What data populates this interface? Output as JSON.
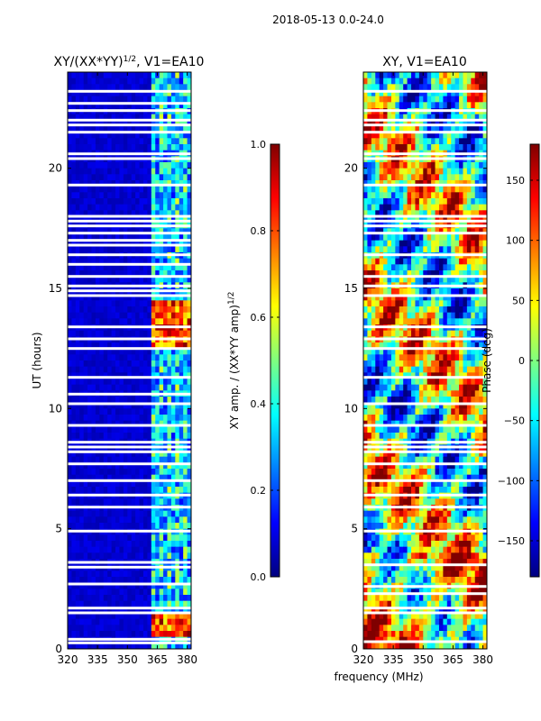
{
  "figure": {
    "suptitle": "2018-05-13 0.0-24.0",
    "xlabel": "frequency (MHz)"
  },
  "colors": {
    "jet": [
      "#00007f",
      "#0000ff",
      "#007fff",
      "#00ffff",
      "#7fff7f",
      "#ffff00",
      "#ff7f00",
      "#ff0000",
      "#7f0000"
    ],
    "gap": "#ffffff",
    "frame": "#000000"
  },
  "chart_data": [
    {
      "type": "heatmap",
      "name": "amplitude-ratio",
      "title_main": "XY/(XX*YY)",
      "title_sup": "1/2",
      "title_tail": ", V1=EA10",
      "xlabel": "",
      "ylabel": "UT (hours)",
      "xlim": [
        320,
        382
      ],
      "ylim": [
        0,
        24
      ],
      "xticks": [
        320,
        335,
        350,
        365,
        380
      ],
      "yticks": [
        0,
        5,
        10,
        15,
        20
      ],
      "colorbar": {
        "label_main": "XY amp. / (XX*YY amp)",
        "label_sup": "1/2",
        "range": [
          0.0,
          1.0
        ],
        "ticks": [
          "0.0",
          "0.2",
          "0.4",
          "0.6",
          "0.8",
          "1.0"
        ]
      },
      "gaps_hours": [
        0.25,
        0.4,
        1.5,
        1.7,
        2.7,
        3.4,
        3.6,
        4.9,
        5.9,
        6.4,
        7.0,
        7.7,
        8.2,
        8.4,
        8.6,
        9.3,
        10.2,
        10.6,
        11.3,
        12.5,
        12.9,
        13.4,
        14.7,
        14.9,
        15.1,
        15.5,
        16.0,
        16.4,
        16.8,
        17.0,
        17.3,
        17.6,
        17.8,
        18.0,
        19.3,
        20.4,
        20.6,
        21.5,
        21.8,
        22.0,
        22.4,
        22.7,
        23.2
      ],
      "levels": [
        {
          "band": "320-362 MHz (background)",
          "value": 0.06
        },
        {
          "band": "362-382 MHz (RFI channels)",
          "value": 0.45
        },
        {
          "band": "362-382 MHz, 12.5-14.5 h",
          "value": 0.85
        },
        {
          "band": "362-382 MHz, 0.5-1.5 h",
          "value": 0.85
        }
      ]
    },
    {
      "type": "heatmap",
      "name": "phase",
      "title_main": "XY, V1=EA10",
      "xlabel": "",
      "ylabel": "",
      "xlim": [
        320,
        382
      ],
      "ylim": [
        0,
        24
      ],
      "xticks": [
        320,
        335,
        350,
        365,
        380
      ],
      "yticks": [
        0,
        5,
        10,
        15,
        20
      ],
      "colorbar": {
        "label_main": "Phase (deg)",
        "range": [
          -180,
          180
        ],
        "ticks": [
          "−150",
          "−100",
          "−50",
          "0",
          "50",
          "100",
          "150"
        ]
      },
      "gaps_hours": [
        0.3,
        1.5,
        1.7,
        2.3,
        2.6,
        3.5,
        4.9,
        5.9,
        6.4,
        7.0,
        7.7,
        8.2,
        8.4,
        8.6,
        9.3,
        10.2,
        11.3,
        12.5,
        12.9,
        13.4,
        14.7,
        15.1,
        15.5,
        16.4,
        17.3,
        17.6,
        17.8,
        18.0,
        19.3,
        20.4,
        20.6,
        21.5,
        21.8,
        22.0,
        22.4,
        23.2
      ],
      "levels": [
        {
          "band": "0-4 h",
          "value": 60
        },
        {
          "band": "4-9 h",
          "value": -20
        },
        {
          "band": "9-18 h",
          "value": -60
        },
        {
          "band": "18-24 h",
          "value": 20
        }
      ]
    }
  ]
}
